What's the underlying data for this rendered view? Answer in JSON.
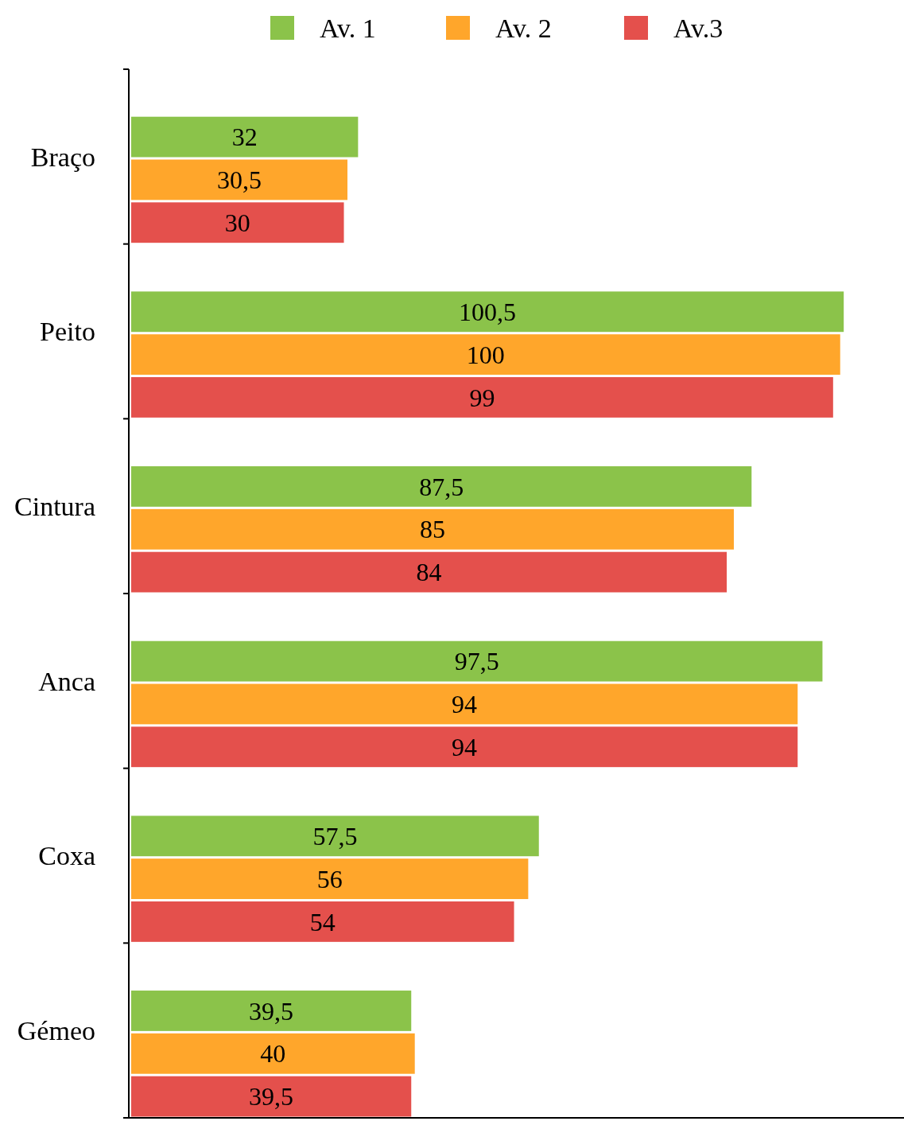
{
  "chart_data": {
    "type": "bar",
    "orientation": "horizontal",
    "categories": [
      "Braço",
      "Peito",
      "Cintura",
      "Anca",
      "Coxa",
      "Gémeo"
    ],
    "series": [
      {
        "name": "Av. 1",
        "color": "#8bc34a",
        "values": [
          32,
          100.5,
          87.5,
          97.5,
          57.5,
          39.5
        ],
        "value_labels": [
          "32",
          "100,5",
          "87,5",
          "97,5",
          "57,5",
          "39,5"
        ]
      },
      {
        "name": "Av. 2",
        "color": "#ffa62b",
        "values": [
          30.5,
          100,
          85,
          94,
          56,
          40
        ],
        "value_labels": [
          "30,5",
          "100",
          "85",
          "94",
          "56",
          "40"
        ]
      },
      {
        "name": "Av.3",
        "color": "#e4504c",
        "values": [
          30,
          99,
          84,
          94,
          54,
          39.5
        ],
        "value_labels": [
          "30",
          "99",
          "84",
          "94",
          "54",
          "39,5"
        ]
      }
    ],
    "xlim": [
      0,
      109
    ],
    "tick_labels": "y",
    "legend": "top",
    "grid": false
  }
}
